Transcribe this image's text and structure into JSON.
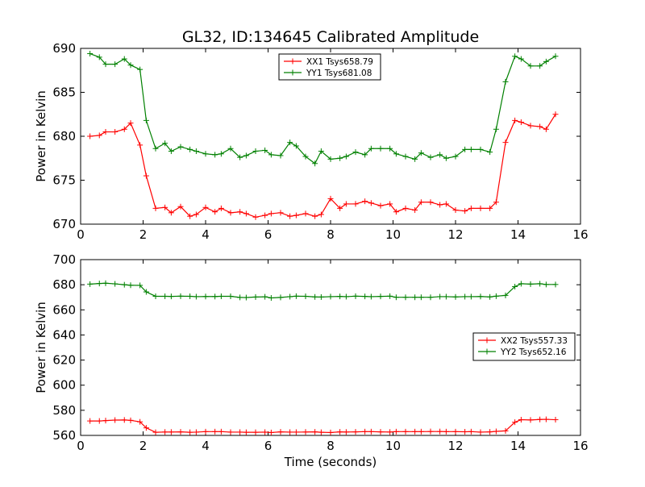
{
  "title": "GL32, ID:134645 Calibrated Amplitude",
  "xlabel": "Time (seconds)",
  "colors": {
    "red": "#ff0000",
    "green": "#008000"
  },
  "chart_data": [
    {
      "type": "line",
      "ylabel": "Power in Kelvin",
      "xlim": [
        0,
        16
      ],
      "ylim": [
        670,
        690
      ],
      "xticks": [
        0,
        2,
        4,
        6,
        8,
        10,
        12,
        14,
        16
      ],
      "yticks": [
        670,
        675,
        680,
        685,
        690
      ],
      "legend_position": "top-center",
      "x": [
        0.3,
        0.6,
        0.8,
        1.1,
        1.4,
        1.6,
        1.9,
        2.1,
        2.4,
        2.7,
        2.9,
        3.2,
        3.5,
        3.7,
        4.0,
        4.3,
        4.5,
        4.8,
        5.1,
        5.3,
        5.6,
        5.9,
        6.1,
        6.4,
        6.7,
        6.9,
        7.2,
        7.5,
        7.7,
        8.0,
        8.3,
        8.5,
        8.8,
        9.1,
        9.3,
        9.6,
        9.9,
        10.1,
        10.4,
        10.7,
        10.9,
        11.2,
        11.5,
        11.7,
        12.0,
        12.3,
        12.5,
        12.8,
        13.1,
        13.3,
        13.6,
        13.9,
        14.1,
        14.4,
        14.7,
        14.9,
        15.2
      ],
      "series": [
        {
          "name": "XX1 Tsys658.79",
          "color": "#ff0000",
          "values": [
            680.0,
            680.1,
            680.5,
            680.5,
            680.8,
            681.5,
            679.0,
            675.5,
            671.8,
            671.9,
            671.3,
            672.0,
            670.9,
            671.1,
            671.9,
            671.4,
            671.8,
            671.3,
            671.4,
            671.2,
            670.8,
            671.0,
            671.2,
            671.3,
            670.9,
            671.0,
            671.2,
            670.9,
            671.1,
            672.9,
            671.8,
            672.3,
            672.3,
            672.6,
            672.4,
            672.1,
            672.3,
            671.4,
            671.8,
            671.6,
            672.5,
            672.5,
            672.2,
            672.3,
            671.6,
            671.5,
            671.8,
            671.8,
            671.8,
            672.5,
            679.3,
            681.8,
            681.6,
            681.2,
            681.1,
            680.8,
            682.5
          ]
        },
        {
          "name": "YY1 Tsys681.08",
          "color": "#008000",
          "values": [
            689.4,
            689.0,
            688.2,
            688.2,
            688.8,
            688.1,
            687.6,
            681.8,
            678.6,
            679.2,
            678.3,
            678.8,
            678.5,
            678.3,
            678.0,
            677.9,
            678.0,
            678.6,
            677.6,
            677.8,
            678.3,
            678.4,
            677.9,
            677.8,
            679.3,
            678.9,
            677.7,
            676.9,
            678.3,
            677.4,
            677.5,
            677.7,
            678.2,
            677.9,
            678.6,
            678.6,
            678.6,
            678.0,
            677.7,
            677.4,
            678.1,
            677.6,
            677.9,
            677.5,
            677.7,
            678.5,
            678.5,
            678.5,
            678.2,
            680.8,
            686.2,
            689.1,
            688.8,
            688.0,
            688.0,
            688.5,
            689.1
          ]
        }
      ]
    },
    {
      "type": "line",
      "ylabel": "Power in Kelvin",
      "xlim": [
        0,
        16
      ],
      "ylim": [
        560,
        700
      ],
      "xticks": [
        0,
        2,
        4,
        6,
        8,
        10,
        12,
        14,
        16
      ],
      "yticks": [
        560,
        580,
        600,
        620,
        640,
        660,
        680,
        700
      ],
      "legend_position": "center-right",
      "x": [
        0.3,
        0.6,
        0.8,
        1.1,
        1.4,
        1.6,
        1.9,
        2.1,
        2.4,
        2.7,
        2.9,
        3.2,
        3.5,
        3.7,
        4.0,
        4.3,
        4.5,
        4.8,
        5.1,
        5.3,
        5.6,
        5.9,
        6.1,
        6.4,
        6.7,
        6.9,
        7.2,
        7.5,
        7.7,
        8.0,
        8.3,
        8.5,
        8.8,
        9.1,
        9.3,
        9.6,
        9.9,
        10.1,
        10.4,
        10.7,
        10.9,
        11.2,
        11.5,
        11.7,
        12.0,
        12.3,
        12.5,
        12.8,
        13.1,
        13.3,
        13.6,
        13.9,
        14.1,
        14.4,
        14.7,
        14.9,
        15.2
      ],
      "series": [
        {
          "name": "XX2 Tsys557.33",
          "color": "#ff0000",
          "values": [
            571.5,
            571.5,
            571.8,
            572.2,
            572.3,
            572.0,
            570.8,
            566.0,
            562.5,
            562.7,
            562.7,
            562.8,
            562.5,
            562.6,
            563.0,
            563.0,
            563.0,
            562.6,
            562.6,
            562.5,
            562.5,
            562.6,
            562.3,
            562.8,
            562.6,
            562.6,
            562.7,
            562.8,
            562.5,
            562.3,
            562.8,
            562.7,
            562.8,
            563.0,
            563.0,
            562.8,
            562.7,
            563.0,
            563.0,
            563.0,
            563.0,
            563.1,
            563.1,
            563.0,
            563.0,
            562.9,
            563.0,
            562.6,
            562.8,
            563.2,
            563.6,
            570.5,
            572.5,
            572.3,
            572.7,
            572.8,
            572.5
          ]
        },
        {
          "name": "YY2 Tsys652.16",
          "color": "#008000",
          "values": [
            680.5,
            681.0,
            681.2,
            680.7,
            680.0,
            679.6,
            679.5,
            674.3,
            670.8,
            670.8,
            670.7,
            670.9,
            670.8,
            670.5,
            670.6,
            670.6,
            670.8,
            670.8,
            669.9,
            669.8,
            670.2,
            670.4,
            669.5,
            669.9,
            670.5,
            670.9,
            670.8,
            670.3,
            670.2,
            670.5,
            670.7,
            670.5,
            670.9,
            670.7,
            670.5,
            670.7,
            670.9,
            670.0,
            670.0,
            670.0,
            670.0,
            670.0,
            670.5,
            670.5,
            670.3,
            670.5,
            670.5,
            670.6,
            670.3,
            670.9,
            671.5,
            678.5,
            680.8,
            680.5,
            680.8,
            680.2,
            680.2
          ]
        }
      ]
    }
  ]
}
